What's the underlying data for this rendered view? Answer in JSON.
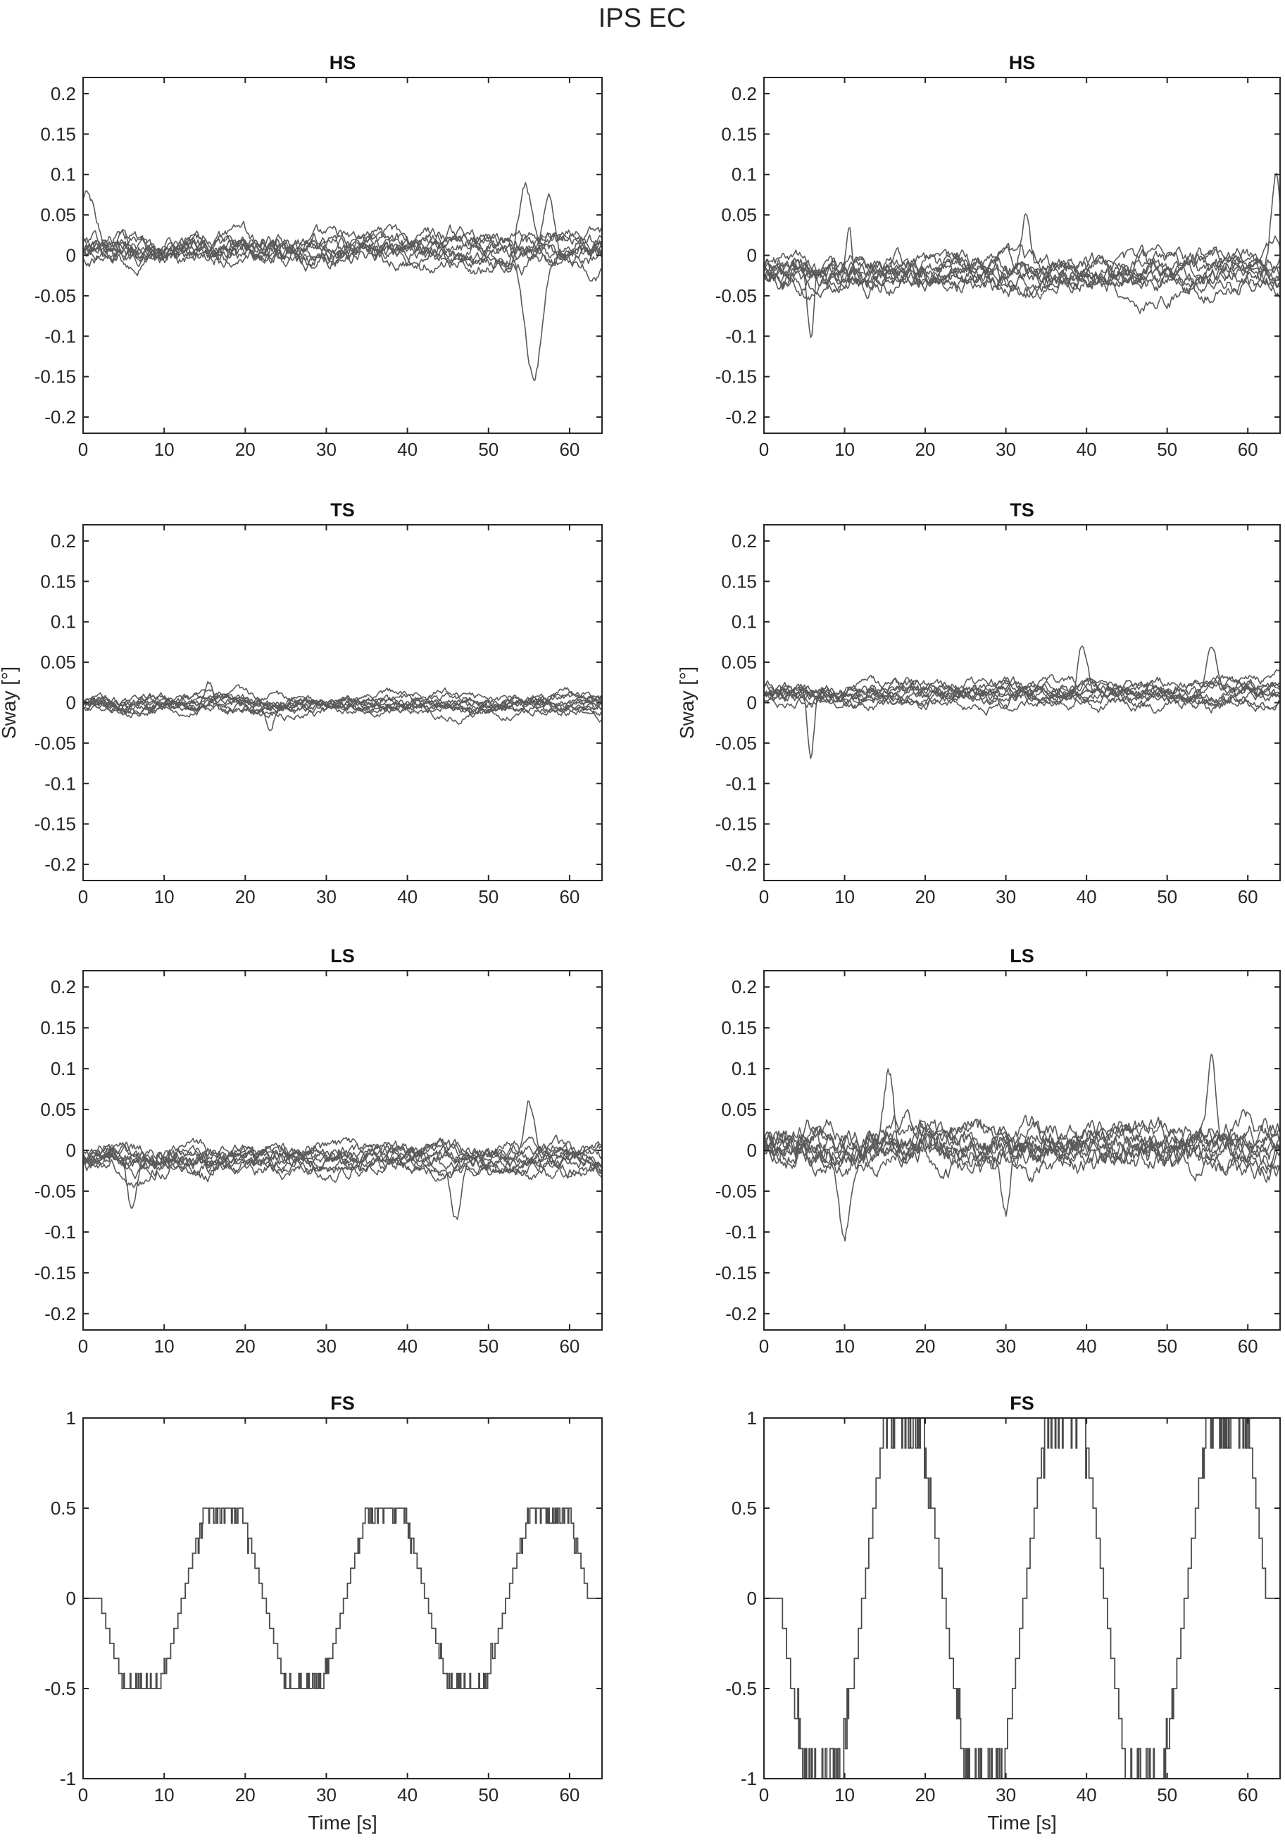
{
  "figure": {
    "title": "IPS EC",
    "xlabel": "Time [s]",
    "ylabel": "Sway [°]"
  },
  "chart_data": [
    {
      "type": "line",
      "title": "HS",
      "column": "left",
      "xlim": [
        0,
        64
      ],
      "ylim": [
        -0.22,
        0.22
      ],
      "xticks": [
        "0",
        "10",
        "20",
        "30",
        "40",
        "50",
        "60"
      ],
      "yticks": [
        "0.2",
        "0.15",
        "0.1",
        "0.05",
        "0",
        "-0.05",
        "-0.1",
        "-0.15",
        "-0.2"
      ],
      "n_traces": 10,
      "amplitude": 0.02,
      "features": [
        {
          "t": 55.5,
          "v": -0.155,
          "w": 1.6
        },
        {
          "t": 54.5,
          "v": 0.09,
          "w": 1.2
        },
        {
          "t": 57.5,
          "v": 0.085,
          "w": 1.0
        },
        {
          "t": 0.5,
          "v": 0.07,
          "w": 1.5
        }
      ]
    },
    {
      "type": "line",
      "title": "HS",
      "column": "right",
      "xlim": [
        0,
        64
      ],
      "ylim": [
        -0.22,
        0.22
      ],
      "xticks": [
        "0",
        "10",
        "20",
        "30",
        "40",
        "50",
        "60"
      ],
      "yticks": [
        "0.2",
        "0.15",
        "0.1",
        "0.05",
        "0",
        "-0.05",
        "-0.1",
        "-0.15",
        "-0.2"
      ],
      "n_traces": 10,
      "amplitude": 0.022,
      "features": [
        {
          "t": 5.8,
          "v": -0.09,
          "w": 0.6
        },
        {
          "t": 10.5,
          "v": 0.075,
          "w": 0.6
        },
        {
          "t": 63.5,
          "v": 0.11,
          "w": 0.8
        },
        {
          "t": 32.5,
          "v": 0.07,
          "w": 0.8
        }
      ]
    },
    {
      "type": "line",
      "title": "TS",
      "column": "left",
      "xlim": [
        0,
        64
      ],
      "ylim": [
        -0.22,
        0.22
      ],
      "xticks": [
        "0",
        "10",
        "20",
        "30",
        "40",
        "50",
        "60"
      ],
      "yticks": [
        "0.2",
        "0.15",
        "0.1",
        "0.05",
        "0",
        "-0.05",
        "-0.1",
        "-0.15",
        "-0.2"
      ],
      "n_traces": 10,
      "amplitude": 0.012,
      "features": [
        {
          "t": 15.5,
          "v": 0.032,
          "w": 0.8
        },
        {
          "t": 23,
          "v": -0.04,
          "w": 0.8
        }
      ]
    },
    {
      "type": "line",
      "title": "TS",
      "column": "right",
      "xlim": [
        0,
        64
      ],
      "ylim": [
        -0.22,
        0.22
      ],
      "xticks": [
        "0",
        "10",
        "20",
        "30",
        "40",
        "50",
        "60"
      ],
      "yticks": [
        "0.2",
        "0.15",
        "0.1",
        "0.05",
        "0",
        "-0.05",
        "-0.1",
        "-0.15",
        "-0.2"
      ],
      "n_traces": 10,
      "amplitude": 0.015,
      "features": [
        {
          "t": 5.8,
          "v": -0.09,
          "w": 0.6
        },
        {
          "t": 39.5,
          "v": 0.062,
          "w": 0.8
        },
        {
          "t": 55.5,
          "v": 0.055,
          "w": 1.0
        }
      ]
    },
    {
      "type": "line",
      "title": "LS",
      "column": "left",
      "xlim": [
        0,
        64
      ],
      "ylim": [
        -0.22,
        0.22
      ],
      "xticks": [
        "0",
        "10",
        "20",
        "30",
        "40",
        "50",
        "60"
      ],
      "yticks": [
        "0.2",
        "0.15",
        "0.1",
        "0.05",
        "0",
        "-0.05",
        "-0.1",
        "-0.15",
        "-0.2"
      ],
      "n_traces": 10,
      "amplitude": 0.018,
      "features": [
        {
          "t": 55,
          "v": 0.07,
          "w": 0.9
        },
        {
          "t": 46,
          "v": -0.06,
          "w": 1.0
        },
        {
          "t": 6,
          "v": -0.06,
          "w": 0.8
        }
      ]
    },
    {
      "type": "line",
      "title": "LS",
      "column": "right",
      "xlim": [
        0,
        64
      ],
      "ylim": [
        -0.22,
        0.22
      ],
      "xticks": [
        "0",
        "10",
        "20",
        "30",
        "40",
        "50",
        "60"
      ],
      "yticks": [
        "0.2",
        "0.15",
        "0.1",
        "0.05",
        "0",
        "-0.05",
        "-0.1",
        "-0.15",
        "-0.2"
      ],
      "n_traces": 10,
      "amplitude": 0.028,
      "features": [
        {
          "t": 10,
          "v": -0.09,
          "w": 0.8
        },
        {
          "t": 15.5,
          "v": 0.09,
          "w": 0.8
        },
        {
          "t": 55.5,
          "v": 0.095,
          "w": 0.8
        },
        {
          "t": 30,
          "v": -0.085,
          "w": 0.8
        }
      ]
    },
    {
      "type": "line",
      "title": "FS",
      "column": "left",
      "xlim": [
        0,
        64
      ],
      "ylim": [
        -1,
        1
      ],
      "xticks": [
        "0",
        "10",
        "20",
        "30",
        "40",
        "50",
        "60"
      ],
      "yticks": [
        "1",
        "0.5",
        "0",
        "-0.5",
        "-1"
      ],
      "period": 20,
      "peak": 0.5,
      "points": [
        [
          0,
          0
        ],
        [
          2,
          0
        ],
        [
          5,
          -0.5
        ],
        [
          9.6,
          -0.5
        ],
        [
          15,
          0.5
        ],
        [
          19.6,
          0.5
        ],
        [
          25,
          -0.5
        ],
        [
          29.6,
          -0.5
        ],
        [
          35,
          0.5
        ],
        [
          39.6,
          0.5
        ],
        [
          45,
          -0.5
        ],
        [
          49.6,
          -0.5
        ],
        [
          55,
          0.5
        ],
        [
          60,
          0.5
        ],
        [
          62.3,
          0
        ],
        [
          64,
          0
        ]
      ]
    },
    {
      "type": "line",
      "title": "FS",
      "column": "right",
      "xlim": [
        0,
        64
      ],
      "ylim": [
        -1,
        1
      ],
      "xticks": [
        "0",
        "10",
        "20",
        "30",
        "40",
        "50",
        "60"
      ],
      "yticks": [
        "1",
        "0.5",
        "0",
        "-0.5",
        "-1"
      ],
      "period": 20,
      "peak": 1.0,
      "points": [
        [
          0,
          0
        ],
        [
          2,
          0
        ],
        [
          5,
          -1
        ],
        [
          9.6,
          -1
        ],
        [
          15,
          1
        ],
        [
          19.6,
          1
        ],
        [
          25,
          -1
        ],
        [
          29.6,
          -1
        ],
        [
          35,
          1
        ],
        [
          39.6,
          1
        ],
        [
          45,
          -1
        ],
        [
          49.6,
          -1
        ],
        [
          55,
          1
        ],
        [
          60,
          1
        ],
        [
          62.3,
          0
        ],
        [
          64,
          0
        ]
      ]
    }
  ]
}
